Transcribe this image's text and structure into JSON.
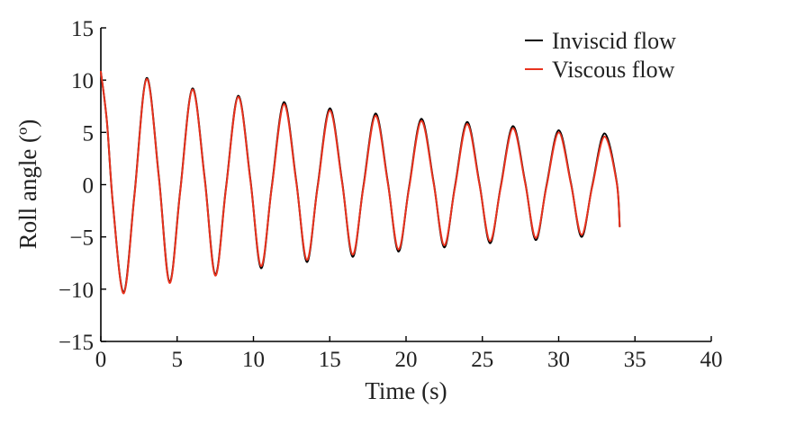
{
  "chart_data": {
    "type": "line",
    "title": "",
    "xlabel": "Time (s)",
    "ylabel": "Roll angle (º)",
    "xlim": [
      0,
      40
    ],
    "ylim": [
      -15,
      15
    ],
    "xticks": [
      0,
      5,
      10,
      15,
      20,
      25,
      30,
      35,
      40
    ],
    "xtick_labels": [
      "0",
      "5",
      "10",
      "15",
      "20",
      "25",
      "30",
      "35",
      "40"
    ],
    "yticks": [
      15,
      10,
      5,
      0,
      -5,
      -10,
      -15
    ],
    "ytick_labels": [
      "15",
      "10",
      "5",
      "0",
      "−5",
      "−10",
      "−15"
    ],
    "grid": false,
    "legend_position": "top-right",
    "series": [
      {
        "name": "Inviscid flow",
        "color": "#000000",
        "x": [
          0,
          0.4,
          0.8,
          1.5,
          2.2,
          3.0,
          3.8,
          4.5,
          5.2,
          6.0,
          6.8,
          7.5,
          8.2,
          9.0,
          9.8,
          10.5,
          11.2,
          12.0,
          12.8,
          13.5,
          14.2,
          15.0,
          15.8,
          16.5,
          17.2,
          18.0,
          18.8,
          19.5,
          20.2,
          21.0,
          21.8,
          22.5,
          23.2,
          24.0,
          24.8,
          25.5,
          26.2,
          27.0,
          27.8,
          28.5,
          29.2,
          30.0,
          30.8,
          31.5,
          32.2,
          33.0,
          33.8,
          34.0
        ],
        "y": [
          10.8,
          6.0,
          -2.0,
          -10.3,
          -1.0,
          10.2,
          0.8,
          -9.3,
          -0.6,
          9.2,
          0.7,
          -8.6,
          -0.3,
          8.5,
          0.5,
          -8.0,
          -0.2,
          7.9,
          0.4,
          -7.4,
          -0.2,
          7.3,
          0.4,
          -6.9,
          -0.2,
          6.8,
          0.3,
          -6.4,
          -0.2,
          6.3,
          0.3,
          -6.0,
          -0.2,
          6.0,
          0.2,
          -5.6,
          -0.2,
          5.6,
          0.3,
          -5.3,
          -0.1,
          5.2,
          0.2,
          -5.0,
          -0.1,
          4.9,
          0.3,
          -4.0
        ]
      },
      {
        "name": "Viscous flow",
        "color": "#e8321e",
        "x": [
          0,
          0.4,
          0.8,
          1.5,
          2.2,
          3.0,
          3.8,
          4.5,
          5.2,
          6.0,
          6.8,
          7.5,
          8.2,
          9.0,
          9.8,
          10.5,
          11.2,
          12.0,
          12.8,
          13.5,
          14.2,
          15.0,
          15.8,
          16.5,
          17.2,
          18.0,
          18.8,
          19.5,
          20.2,
          21.0,
          21.8,
          22.5,
          23.2,
          24.0,
          24.8,
          25.5,
          26.2,
          27.0,
          27.8,
          28.5,
          29.2,
          30.0,
          30.8,
          31.5,
          32.2,
          33.0,
          33.8,
          34.0
        ],
        "y": [
          10.8,
          6.0,
          -2.0,
          -10.4,
          -1.1,
          10.1,
          0.7,
          -9.4,
          -0.7,
          9.1,
          0.6,
          -8.7,
          -0.4,
          8.4,
          0.4,
          -7.8,
          -0.3,
          7.7,
          0.3,
          -7.2,
          -0.3,
          7.1,
          0.3,
          -6.7,
          -0.3,
          6.6,
          0.2,
          -6.2,
          -0.3,
          6.1,
          0.2,
          -5.8,
          -0.3,
          5.8,
          0.1,
          -5.4,
          -0.3,
          5.4,
          0.2,
          -5.1,
          -0.2,
          5.0,
          0.1,
          -4.8,
          -0.2,
          4.6,
          0.2,
          -4.0
        ]
      }
    ]
  }
}
